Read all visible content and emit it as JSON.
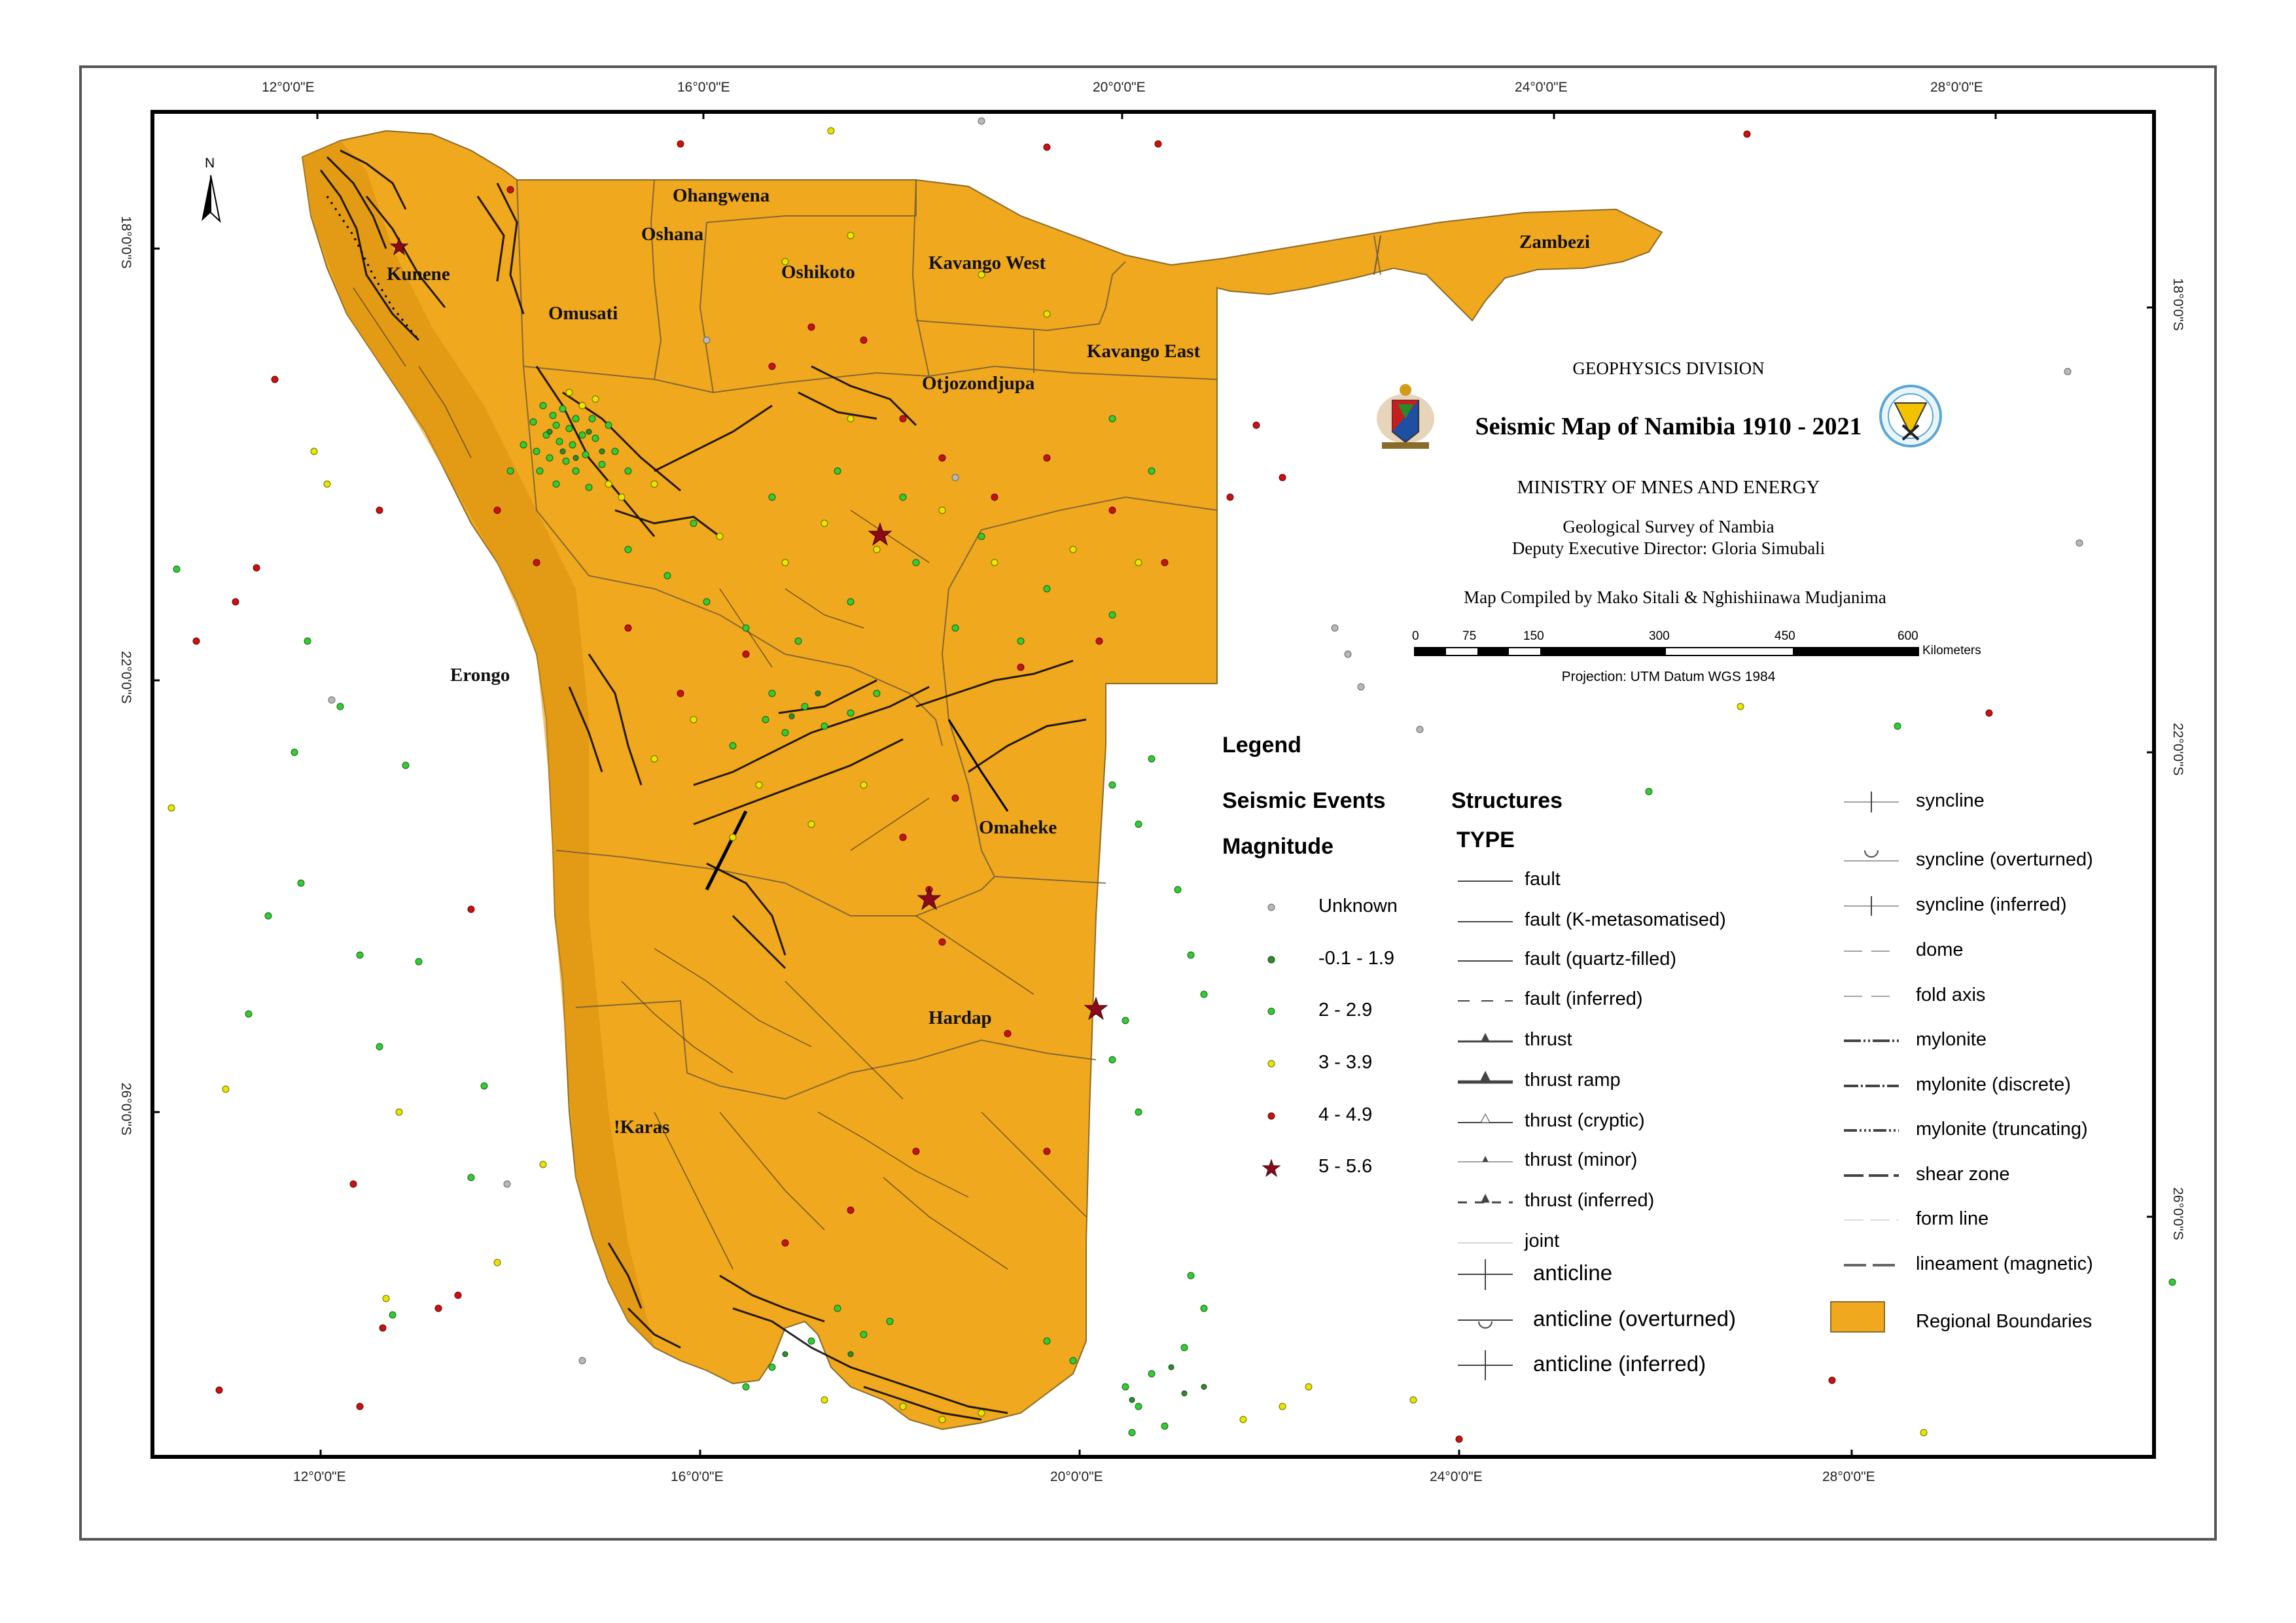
{
  "title": {
    "division": "GEOPHYSICS DIVISION",
    "main": "Seismic Map of Namibia 1910 - 2021",
    "ministry": "MINISTRY OF MNES AND ENERGY",
    "survey": "Geological Survey of Nambia",
    "director": "Deputy Executive Director: Gloria Simubali",
    "compiled": "Map Compiled by Mako Sitali & Nghishiinawa Mudjanima"
  },
  "scale_bar": {
    "ticks": [
      "0",
      "75",
      "150",
      "300",
      "450",
      "600"
    ],
    "unit": "Kilometers",
    "projection": "Projection: UTM Datum WGS 1984"
  },
  "graticule": {
    "top": [
      "12°0'0\"E",
      "16°0'0\"E",
      "20°0'0\"E",
      "24°0'0\"E",
      "28°0'0\"E"
    ],
    "bottom": [
      "12°0'0\"E",
      "16°0'0\"E",
      "20°0'0\"E",
      "24°0'0\"E",
      "28°0'0\"E"
    ],
    "left": [
      "18°0'0\"S",
      "22°0'0\"S",
      "26°0'0\"S"
    ],
    "right": [
      "18°0'0\"S",
      "22°0'0\"S",
      "26°0'0\"S"
    ]
  },
  "north_arrow": "N",
  "regions": [
    "Ohangwena",
    "Oshana",
    "Oshikoto",
    "Kavango West",
    "Zambezi",
    "Kunene",
    "Omusati",
    "Kavango East",
    "Otjozondjupa",
    "Erongo",
    "Omaheke",
    "Hardap",
    "!Karas"
  ],
  "legend": {
    "title": "Legend",
    "seismic_heading": "Seismic Events",
    "magnitude_heading": "Magnitude",
    "magnitudes": [
      {
        "label": "Unknown",
        "color": "#b8b8b8",
        "symbol": "circle"
      },
      {
        "label": "-0.1 - 1.9",
        "color": "#2e8b2e",
        "symbol": "circle"
      },
      {
        "label": "2 - 2.9",
        "color": "#33cc33",
        "symbol": "circle"
      },
      {
        "label": "3 - 3.9",
        "color": "#e6e600",
        "symbol": "circle"
      },
      {
        "label": "4 - 4.9",
        "color": "#cc1111",
        "symbol": "circle"
      },
      {
        "label": "5 - 5.6",
        "color": "#8b0a1a",
        "symbol": "star"
      }
    ],
    "structures_heading": "Structures",
    "type_heading": "TYPE",
    "structures_col1": [
      "fault",
      "fault (K-metasomatised)",
      "fault (quartz-filled)",
      "fault (inferred)",
      "thrust",
      "thrust ramp",
      "thrust (cryptic)",
      "thrust (minor)",
      "thrust (inferred)",
      "joint",
      "anticline",
      "anticline (overturned)",
      "anticline (inferred)"
    ],
    "structures_col2": [
      "syncline",
      "syncline (overturned)",
      "syncline (inferred)",
      "dome",
      "fold axis",
      "mylonite",
      "mylonite (discrete)",
      "mylonite (truncating)",
      "shear zone",
      "form line",
      "lineament (magnetic)",
      "Regional Boundaries"
    ]
  },
  "colors": {
    "land": "#F0A81E",
    "land_dark": "#D98F0F",
    "region_border": "#6b5a3a",
    "structures": "#000000"
  }
}
